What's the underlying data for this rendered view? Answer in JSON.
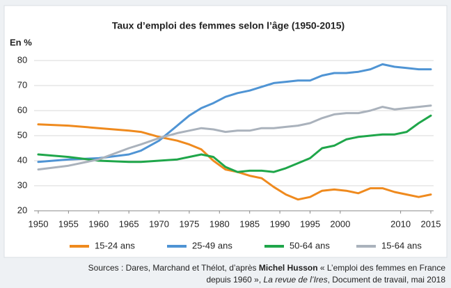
{
  "chart_data": {
    "type": "line",
    "title": "Taux d’emploi des femmes selon l’âge (1950-2015)",
    "y_label": "En %",
    "x": [
      1950,
      1955,
      1960,
      1965,
      1967,
      1970,
      1973,
      1975,
      1977,
      1979,
      1981,
      1983,
      1985,
      1987,
      1989,
      1991,
      1993,
      1995,
      1997,
      1999,
      2001,
      2003,
      2005,
      2007,
      2009,
      2011,
      2013,
      2015
    ],
    "series": [
      {
        "name": "15-24 ans",
        "color": "#ef8a1e",
        "values": [
          54.5,
          54,
          53,
          52,
          51.5,
          49.5,
          48,
          46.5,
          44.5,
          40,
          36.5,
          35.5,
          34,
          33,
          29.5,
          26.5,
          24.5,
          25.5,
          28,
          28.5,
          28,
          27,
          29,
          29,
          27.5,
          26.5,
          25.5,
          26.5
        ]
      },
      {
        "name": "25-49 ans",
        "color": "#4f94d4",
        "values": [
          39.5,
          40.5,
          41,
          42.5,
          44,
          48,
          54,
          58,
          61,
          63,
          65.5,
          67,
          68,
          69.5,
          71,
          71.5,
          72,
          72,
          74,
          75,
          75,
          75.5,
          76.5,
          78.5,
          77.5,
          77,
          76.5,
          76.5
        ]
      },
      {
        "name": "50-64 ans",
        "color": "#1fa64a",
        "values": [
          42.5,
          41.5,
          40,
          39.5,
          39.5,
          40,
          40.5,
          41.5,
          42.5,
          41.5,
          37.5,
          35.5,
          36,
          36,
          35.5,
          37,
          39,
          41,
          45,
          46,
          48.5,
          49.5,
          50,
          50.5,
          50.5,
          51.5,
          55,
          58
        ]
      },
      {
        "name": "15-64 ans",
        "color": "#aab2bc",
        "values": [
          36.5,
          38,
          40.5,
          45,
          46.5,
          49,
          51,
          52,
          53,
          52.5,
          51.5,
          52,
          52,
          53,
          53,
          53.5,
          54,
          55,
          57,
          58.5,
          59,
          59,
          60,
          61.5,
          60.5,
          61,
          61.5,
          62
        ]
      }
    ],
    "xlim": [
      1950,
      2015
    ],
    "xticks": [
      1950,
      1955,
      1960,
      1965,
      1970,
      1975,
      1980,
      1985,
      1990,
      1995,
      2000,
      2010,
      2015
    ],
    "ylim": [
      20,
      80
    ],
    "yticks": [
      20,
      30,
      40,
      50,
      60,
      70,
      80
    ],
    "grid": true,
    "legend": "bottom",
    "source": [
      "Sources : Dares, Marchand et Thélot, d’après ",
      "Michel Husson",
      " « L’emploi des femmes en France",
      "depuis 1960 », ",
      "La revue de l’Ires",
      ", Document de travail, mai 2018"
    ]
  }
}
